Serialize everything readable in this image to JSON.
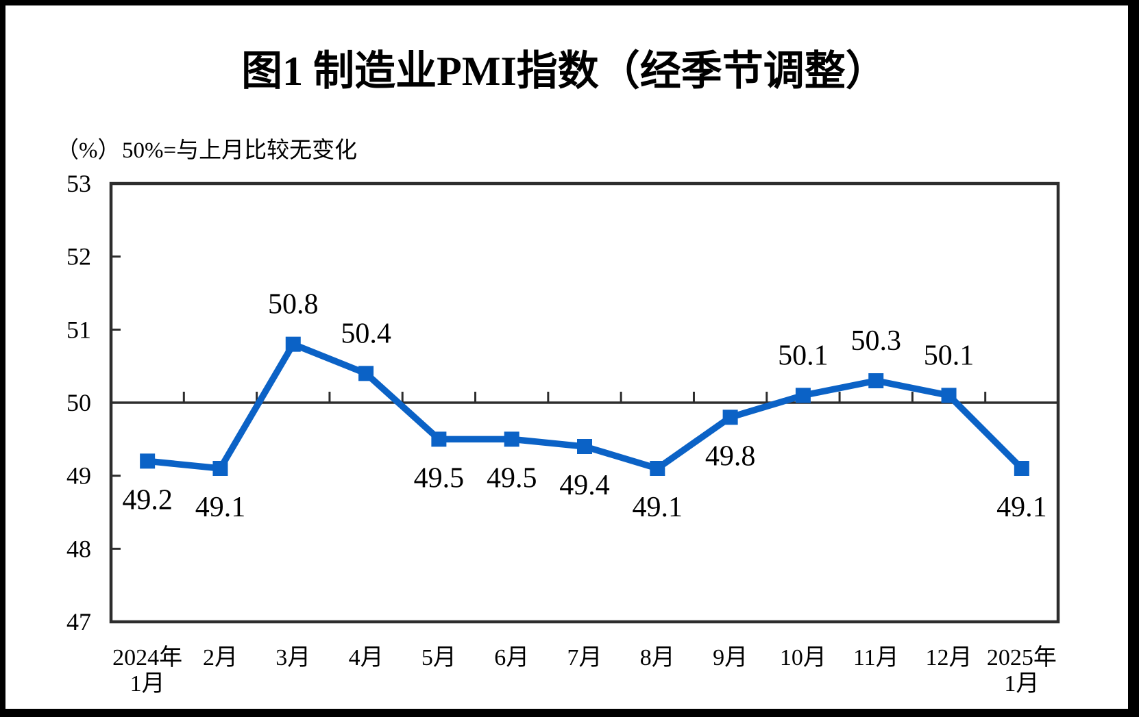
{
  "figure": {
    "title": "图1  制造业PMI指数（经季节调整）",
    "unit_label": "（%）",
    "note": "50%=与上月比较无变化"
  },
  "chart_data": {
    "type": "line",
    "title": "图1  制造业PMI指数（经季节调整）",
    "subtitle_unit": "（%）",
    "subtitle_note": "50%=与上月比较无变化",
    "series_name": "制造业PMI指数（经季节调整）",
    "categories": [
      [
        "2024年",
        "1月"
      ],
      [
        "2月"
      ],
      [
        "3月"
      ],
      [
        "4月"
      ],
      [
        "5月"
      ],
      [
        "6月"
      ],
      [
        "7月"
      ],
      [
        "8月"
      ],
      [
        "9月"
      ],
      [
        "10月"
      ],
      [
        "11月"
      ],
      [
        "12月"
      ],
      [
        "2025年",
        "1月"
      ]
    ],
    "values": [
      49.2,
      49.1,
      50.8,
      50.4,
      49.5,
      49.5,
      49.4,
      49.1,
      49.8,
      50.1,
      50.3,
      50.1,
      49.1
    ],
    "data_labels": [
      "49.2",
      "49.1",
      "50.8",
      "50.4",
      "49.5",
      "49.5",
      "49.4",
      "49.1",
      "49.8",
      "50.1",
      "50.3",
      "50.1",
      "49.1"
    ],
    "label_placement": [
      "below",
      "below",
      "above",
      "above",
      "below",
      "below",
      "below",
      "below",
      "below",
      "above",
      "above",
      "above",
      "below"
    ],
    "ylim": [
      47,
      53
    ],
    "yticks": [
      53,
      52,
      51,
      50,
      49,
      48,
      47
    ],
    "reference_value": 50,
    "grid": false,
    "legend": "none",
    "marker": "square",
    "colors": {
      "line": "#0B62C6",
      "axis": "#2D2D2D",
      "text": "#000000",
      "background": "#FFFFFF",
      "page_border": "#000000"
    }
  }
}
